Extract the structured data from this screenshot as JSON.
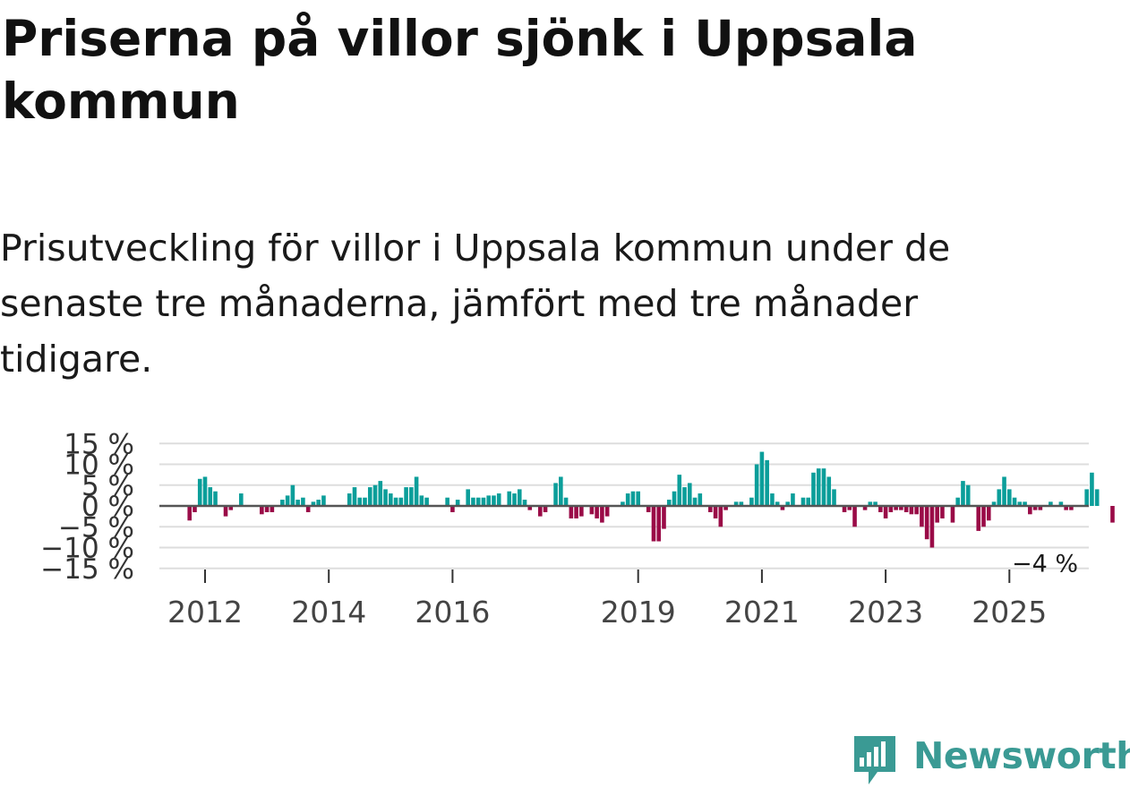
{
  "colors": {
    "positive": "#0b9e9a",
    "negative": "#9a0b47",
    "brand": "#3a9a94"
  },
  "brand": {
    "name": "Newsworthy",
    "logo_icon": "bar-chart-speech-bubble-icon"
  },
  "chart_data": {
    "type": "bar",
    "title": "Priserna på villor sjönk i Uppsala kommun",
    "subtitle": "Prisutveckling för villor i Uppsala kommun under de senaste tre månaderna, jämfört med tre månader tidigare.",
    "xlabel": "",
    "ylabel": "",
    "ylim": [
      -15,
      15
    ],
    "yticks": [
      15,
      10,
      5,
      0,
      -5,
      -10,
      -15
    ],
    "ytick_labels": [
      "15 %",
      "10 %",
      "5 %",
      "0 %",
      "−5 %",
      "−10 %",
      "−15 %"
    ],
    "xticks": [
      2012,
      2014,
      2016,
      2019,
      2021,
      2023,
      2025
    ],
    "xtick_labels": [
      "2012",
      "2014",
      "2016",
      "2019",
      "2021",
      "2023",
      "2025"
    ],
    "start": {
      "year": 2011,
      "month": 10
    },
    "last_value_label": "−4 %",
    "values": [
      -3.5,
      -1.5,
      6.5,
      7,
      4.5,
      3.5,
      0,
      -2.5,
      -1,
      0,
      3,
      0,
      0,
      0,
      -2,
      -1.5,
      -1.5,
      0,
      1.5,
      2.5,
      5,
      1.5,
      2,
      -1.5,
      1,
      1.5,
      2.5,
      0,
      0,
      0,
      0,
      3,
      4.5,
      2,
      2,
      4.5,
      5,
      6,
      4,
      3,
      2,
      2,
      4.5,
      4.5,
      7,
      2.5,
      2,
      0,
      0,
      0,
      2,
      -1.5,
      1.5,
      0,
      4,
      2,
      2,
      2,
      2.5,
      2.5,
      3,
      0,
      3.5,
      3,
      4,
      1.5,
      -1,
      0,
      -2.5,
      -1.5,
      0,
      5.5,
      7,
      2,
      -3,
      -3,
      -2.5,
      0,
      -2,
      -3,
      -4,
      -2.5,
      0,
      0,
      1,
      3,
      3.5,
      3.5,
      0,
      -1.5,
      -8.5,
      -8.5,
      -5.5,
      1.5,
      3.5,
      7.5,
      4.5,
      5.5,
      2,
      3,
      0,
      -1.5,
      -3,
      -5,
      -1,
      0,
      1,
      1,
      0,
      2,
      10,
      13,
      11,
      3,
      1,
      -1,
      1,
      3,
      0,
      2,
      2,
      8,
      9,
      9,
      7,
      4,
      0,
      -1.5,
      -1,
      -5,
      0,
      -1,
      1,
      1,
      -1.5,
      -3,
      -1.5,
      -1,
      -1,
      -1.5,
      -2,
      -2,
      -5,
      -8,
      -10,
      -4,
      -3,
      0,
      -4,
      2,
      6,
      5,
      0,
      -6,
      -5,
      -3.5,
      1,
      4,
      7,
      4,
      2,
      1,
      1,
      -2,
      -1,
      -1,
      0,
      1,
      0,
      1,
      -1,
      -1,
      0,
      0,
      4,
      8,
      4,
      0,
      0,
      -4
    ]
  }
}
